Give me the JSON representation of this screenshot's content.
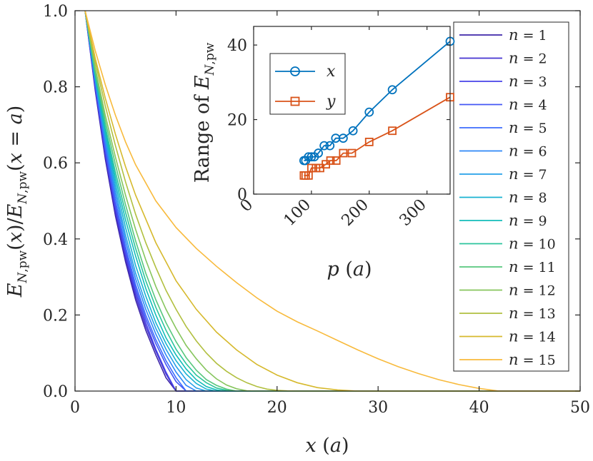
{
  "chart_data": [
    {
      "type": "line",
      "title": "",
      "xlabel": "x (a)",
      "ylabel": "E_N,pw(x)/E_N,pw(x = a)",
      "xlim": [
        0,
        50
      ],
      "ylim": [
        0,
        1
      ],
      "xticks": [
        "0",
        "10",
        "20",
        "30",
        "40",
        "50"
      ],
      "yticks": [
        "0.0",
        "0.2",
        "0.4",
        "0.6",
        "0.8",
        "1.0"
      ],
      "legend_position": "right",
      "series": [
        {
          "name": "n = 1",
          "label_n": "1",
          "color": "#3e26a8",
          "x": [
            1,
            2,
            3,
            4,
            5,
            6,
            7,
            8,
            9,
            10,
            50
          ],
          "y": [
            1,
            0.79,
            0.61,
            0.46,
            0.34,
            0.24,
            0.16,
            0.095,
            0.035,
            0,
            0
          ]
        },
        {
          "name": "n = 2",
          "label_n": "2",
          "color": "#4433d0",
          "x": [
            1,
            2,
            3,
            4,
            5,
            6,
            7,
            8,
            9,
            10,
            50
          ],
          "y": [
            1,
            0.795,
            0.62,
            0.47,
            0.35,
            0.25,
            0.17,
            0.105,
            0.045,
            0,
            0
          ]
        },
        {
          "name": "n = 3",
          "label_n": "3",
          "color": "#4743e8",
          "x": [
            1,
            2,
            3,
            4,
            5,
            6,
            7,
            8,
            9,
            10,
            50
          ],
          "y": [
            1,
            0.8,
            0.625,
            0.48,
            0.36,
            0.26,
            0.18,
            0.11,
            0.05,
            0,
            0
          ]
        },
        {
          "name": "n = 4",
          "label_n": "4",
          "color": "#4456f4",
          "x": [
            1,
            2,
            3,
            4,
            5,
            6,
            7,
            8,
            9,
            10,
            11,
            50
          ],
          "y": [
            1,
            0.805,
            0.635,
            0.49,
            0.37,
            0.27,
            0.19,
            0.125,
            0.07,
            0.025,
            0,
            0
          ]
        },
        {
          "name": "n = 5",
          "label_n": "5",
          "color": "#3d6cfd",
          "x": [
            1,
            2,
            3,
            4,
            5,
            6,
            7,
            8,
            9,
            10,
            11,
            50
          ],
          "y": [
            1,
            0.81,
            0.645,
            0.5,
            0.38,
            0.28,
            0.2,
            0.135,
            0.08,
            0.035,
            0,
            0
          ]
        },
        {
          "name": "n = 6",
          "label_n": "6",
          "color": "#2e87f7",
          "x": [
            1,
            2,
            3,
            4,
            5,
            6,
            7,
            8,
            9,
            10,
            11,
            12,
            50
          ],
          "y": [
            1,
            0.815,
            0.655,
            0.515,
            0.395,
            0.295,
            0.215,
            0.15,
            0.095,
            0.05,
            0.015,
            0,
            0
          ]
        },
        {
          "name": "n = 7",
          "label_n": "7",
          "color": "#25a0e8",
          "x": [
            1,
            2,
            3,
            4,
            5,
            6,
            7,
            8,
            9,
            10,
            11,
            12,
            13,
            50
          ],
          "y": [
            1,
            0.82,
            0.665,
            0.53,
            0.41,
            0.31,
            0.23,
            0.165,
            0.11,
            0.065,
            0.03,
            0.008,
            0,
            0
          ]
        },
        {
          "name": "n = 8",
          "label_n": "8",
          "color": "#19b2d1",
          "x": [
            1,
            2,
            3,
            4,
            5,
            6,
            7,
            8,
            9,
            10,
            11,
            12,
            13,
            14,
            50
          ],
          "y": [
            1,
            0.825,
            0.675,
            0.545,
            0.43,
            0.33,
            0.25,
            0.18,
            0.125,
            0.08,
            0.045,
            0.02,
            0.005,
            0,
            0
          ]
        },
        {
          "name": "n = 9",
          "label_n": "9",
          "color": "#12bdb9",
          "x": [
            1,
            2,
            3,
            4,
            5,
            6,
            7,
            8,
            9,
            10,
            11,
            12,
            13,
            14,
            15,
            50
          ],
          "y": [
            1,
            0.83,
            0.685,
            0.56,
            0.45,
            0.355,
            0.27,
            0.2,
            0.14,
            0.095,
            0.058,
            0.03,
            0.012,
            0.003,
            0,
            0
          ]
        },
        {
          "name": "n = 10",
          "label_n": "10",
          "color": "#2bc49c",
          "x": [
            1,
            2,
            3,
            4,
            5,
            6,
            7,
            8,
            9,
            10,
            11,
            12,
            13,
            14,
            15,
            16,
            50
          ],
          "y": [
            1,
            0.835,
            0.695,
            0.575,
            0.47,
            0.375,
            0.29,
            0.22,
            0.16,
            0.11,
            0.072,
            0.042,
            0.022,
            0.008,
            0.002,
            0,
            0
          ]
        },
        {
          "name": "n = 11",
          "label_n": "11",
          "color": "#57c77d",
          "x": [
            1,
            2,
            3,
            4,
            5,
            6,
            7,
            8,
            9,
            10,
            11,
            12,
            13,
            14,
            15,
            16,
            50
          ],
          "y": [
            1,
            0.84,
            0.71,
            0.595,
            0.49,
            0.395,
            0.31,
            0.24,
            0.18,
            0.13,
            0.088,
            0.055,
            0.03,
            0.015,
            0.005,
            0,
            0
          ]
        },
        {
          "name": "n = 12",
          "label_n": "12",
          "color": "#86c55d",
          "x": [
            1,
            2,
            3,
            4,
            5,
            6,
            7,
            8,
            9,
            10,
            11,
            12,
            13,
            14,
            15,
            16,
            17,
            18,
            50
          ],
          "y": [
            1,
            0.85,
            0.725,
            0.615,
            0.515,
            0.425,
            0.345,
            0.275,
            0.215,
            0.165,
            0.12,
            0.085,
            0.055,
            0.032,
            0.016,
            0.006,
            0.001,
            0,
            0
          ]
        },
        {
          "name": "n = 13",
          "label_n": "13",
          "color": "#b1bf3f",
          "x": [
            1,
            2,
            3,
            4,
            5,
            6,
            7,
            8,
            9,
            10,
            11,
            12,
            13,
            14,
            15,
            16,
            17,
            18,
            19,
            20,
            21,
            22,
            50
          ],
          "y": [
            1,
            0.865,
            0.75,
            0.645,
            0.55,
            0.465,
            0.39,
            0.325,
            0.265,
            0.215,
            0.17,
            0.132,
            0.1,
            0.073,
            0.052,
            0.035,
            0.022,
            0.012,
            0.005,
            0.002,
            0.0005,
            0,
            0
          ]
        },
        {
          "name": "n = 14",
          "label_n": "14",
          "color": "#d6b92d",
          "x": [
            1,
            2,
            3,
            4,
            5,
            6,
            8,
            10,
            12,
            14,
            16,
            18,
            20,
            22,
            24,
            26,
            28,
            50
          ],
          "y": [
            1,
            0.875,
            0.77,
            0.675,
            0.59,
            0.515,
            0.39,
            0.29,
            0.215,
            0.155,
            0.108,
            0.07,
            0.042,
            0.022,
            0.009,
            0.003,
            0,
            0
          ]
        },
        {
          "name": "n = 15",
          "label_n": "15",
          "color": "#f8ba3c",
          "x": [
            1,
            2,
            3,
            4,
            5,
            6,
            8,
            10,
            12,
            14,
            16,
            18,
            20,
            22,
            24,
            26,
            28,
            30,
            32,
            34,
            36,
            38,
            40,
            42,
            50
          ],
          "y": [
            1,
            0.895,
            0.805,
            0.725,
            0.655,
            0.595,
            0.5,
            0.43,
            0.375,
            0.328,
            0.285,
            0.245,
            0.21,
            0.182,
            0.158,
            0.133,
            0.108,
            0.085,
            0.064,
            0.046,
            0.03,
            0.017,
            0.007,
            0,
            0
          ]
        }
      ]
    },
    {
      "type": "line",
      "title": "",
      "xlabel": "p (a)",
      "ylabel": "Range of E_N,pw",
      "xlim": [
        0,
        340
      ],
      "ylim": [
        0,
        45
      ],
      "xticks": [
        "0",
        "100",
        "200",
        "300"
      ],
      "yticks": [
        "0",
        "20",
        "40"
      ],
      "legend_position": "top-left",
      "series": [
        {
          "name": "x",
          "marker": "circle",
          "color": "#0072bd",
          "x": [
            87,
            90,
            95,
            100,
            105,
            112,
            122,
            132,
            142,
            155,
            172,
            200,
            240,
            340
          ],
          "y": [
            9,
            9,
            10,
            10,
            10,
            11,
            13,
            13,
            15,
            15,
            17,
            22,
            28,
            41
          ]
        },
        {
          "name": "y",
          "marker": "square",
          "color": "#d95319",
          "x": [
            87,
            90,
            95,
            100,
            108,
            115,
            125,
            133,
            143,
            155,
            170,
            200,
            240,
            340
          ],
          "y": [
            5,
            5,
            5,
            7,
            7,
            7,
            8,
            9,
            9,
            11,
            11,
            14,
            17,
            26
          ]
        }
      ]
    }
  ]
}
